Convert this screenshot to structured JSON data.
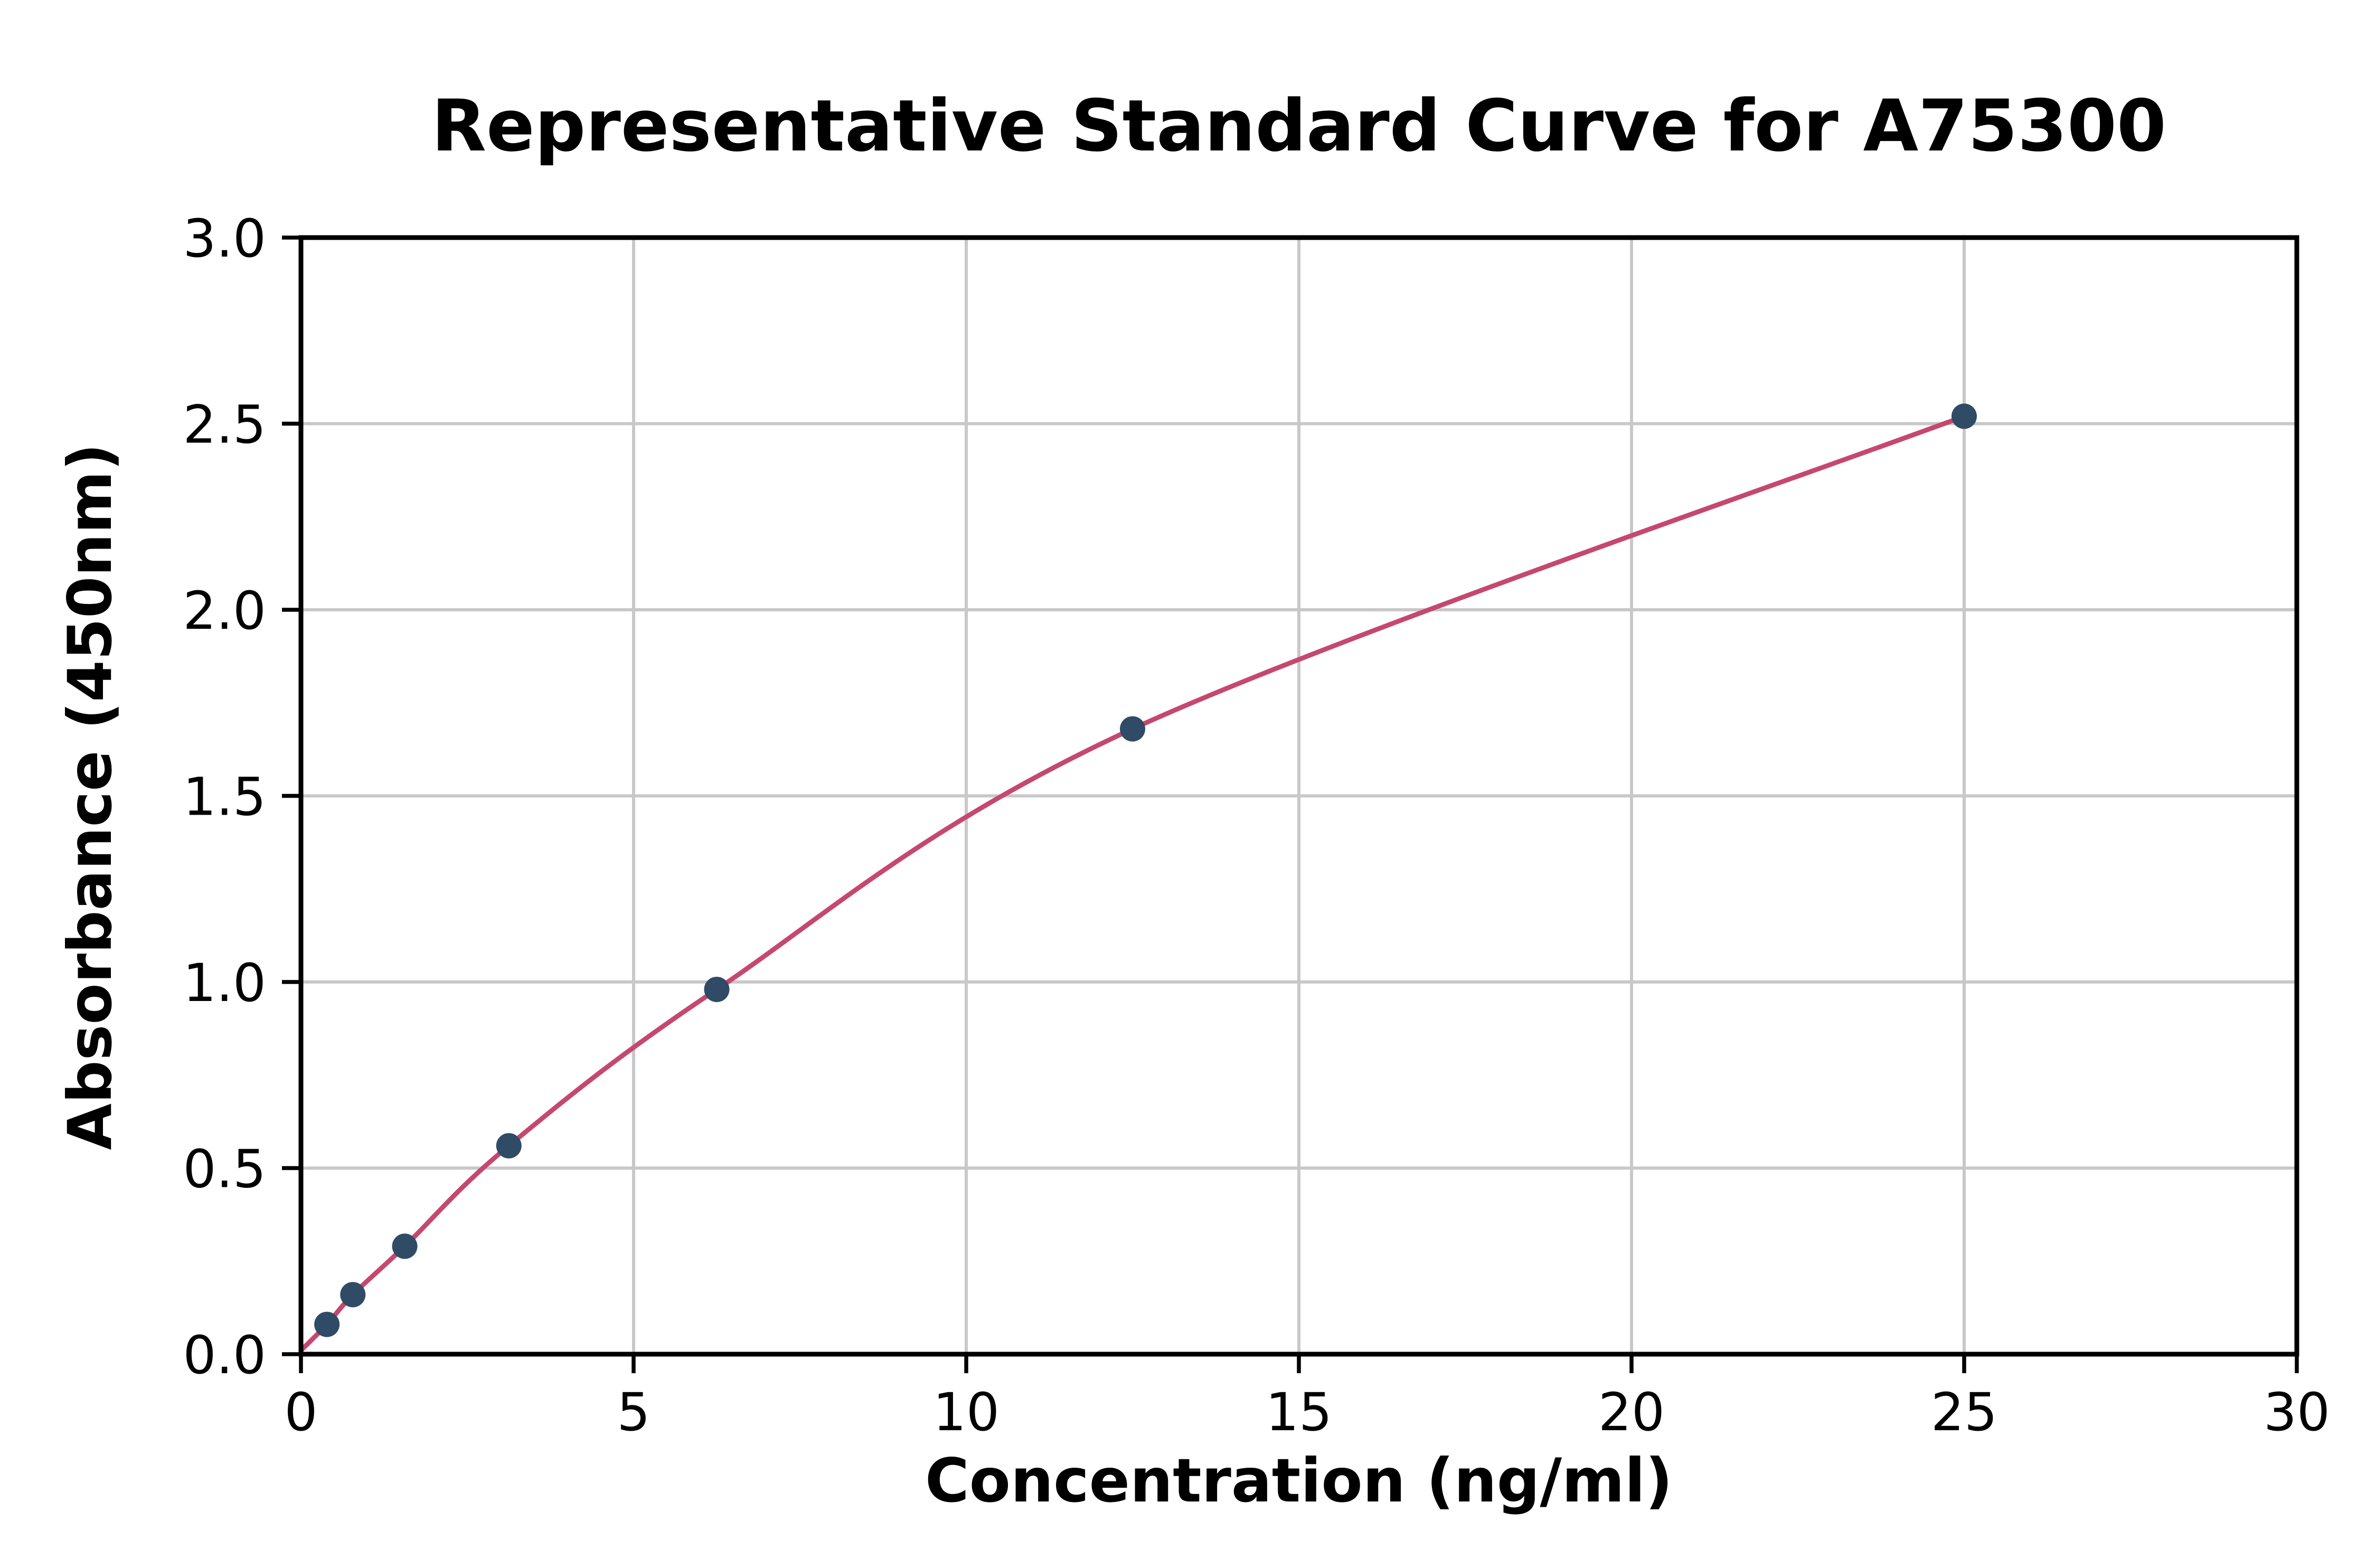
{
  "page": {
    "background": "#ffffff"
  },
  "chart_data": {
    "type": "scatter",
    "title": "Representative Standard Curve for A75300",
    "xlabel": "Concentration (ng/ml)",
    "ylabel": "Absorbance (450nm)",
    "xlim": [
      0,
      30
    ],
    "ylim": [
      0,
      3.0
    ],
    "x_ticks": [
      0,
      5,
      10,
      15,
      20,
      25,
      30
    ],
    "x_tick_labels": [
      "0",
      "5",
      "10",
      "15",
      "20",
      "25",
      "30"
    ],
    "y_ticks": [
      0,
      0.5,
      1.0,
      1.5,
      2.0,
      2.5,
      3.0
    ],
    "y_tick_labels": [
      "0.0",
      "0.5",
      "1.0",
      "1.5",
      "2.0",
      "2.5",
      "3.0"
    ],
    "grid": true,
    "legend": "none",
    "series": [
      {
        "name": "standard-points",
        "type": "scatter",
        "x": [
          0.39,
          0.78,
          1.56,
          3.125,
          6.25,
          12.5,
          25
        ],
        "y": [
          0.08,
          0.16,
          0.29,
          0.56,
          0.98,
          1.68,
          2.52
        ],
        "color": "#2f4b66",
        "marker_radius": 8
      },
      {
        "name": "fitted-curve",
        "type": "line",
        "x": [
          0,
          0.39,
          0.78,
          1.56,
          3.125,
          6.25,
          12.5,
          25
        ],
        "y": [
          0.01,
          0.08,
          0.16,
          0.29,
          0.56,
          0.98,
          1.68,
          2.52
        ],
        "color": "#c5486f",
        "line_width": 3
      }
    ],
    "colors": {
      "grid": "#c8c8c8",
      "axis": "#000000",
      "text": "#000000"
    }
  }
}
